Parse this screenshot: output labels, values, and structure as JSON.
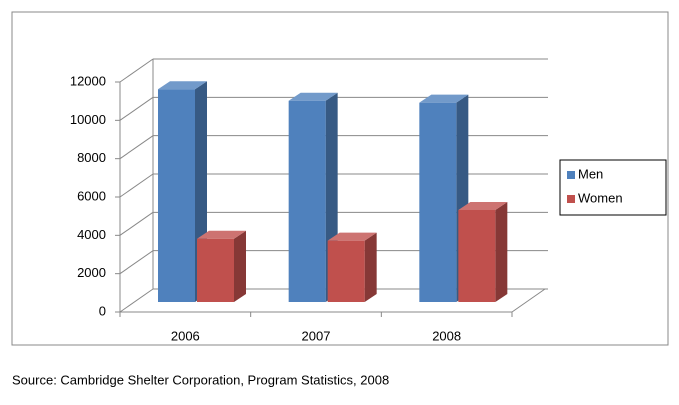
{
  "chart_data": {
    "type": "bar3d",
    "categories": [
      "2006",
      "2007",
      "2008"
    ],
    "series": [
      {
        "name": "Men",
        "color": "#4f81bd",
        "values": [
          11100,
          10500,
          10400
        ]
      },
      {
        "name": "Women",
        "color": "#c0504d",
        "values": [
          3300,
          3200,
          4800
        ]
      }
    ],
    "ylim": [
      0,
      12000
    ],
    "yticks": [
      0,
      2000,
      4000,
      6000,
      8000,
      10000,
      12000
    ],
    "grid": true,
    "legend": "right",
    "source": "Source: Cambridge Shelter Corporation, Program Statistics, 2008"
  }
}
